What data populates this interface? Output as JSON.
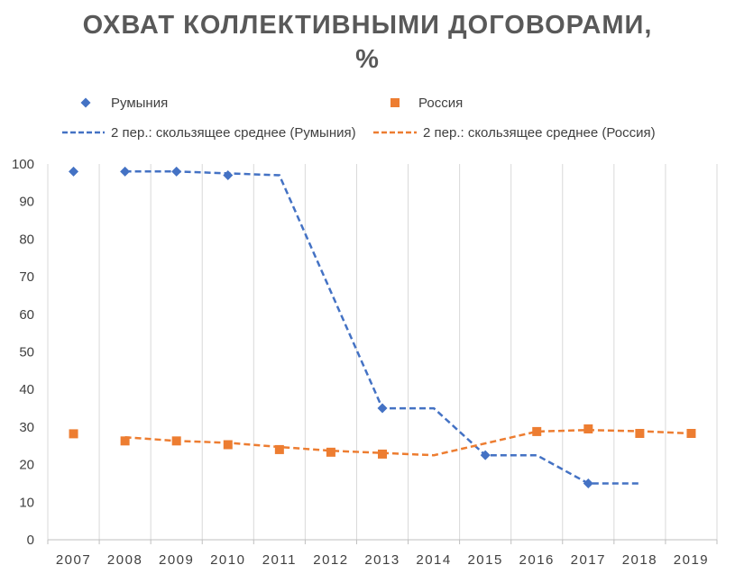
{
  "chart_data": {
    "type": "scatter",
    "title_lines": [
      "ОХВАТ КОЛЛЕКТИВНЫМИ ДОГОВОРАМИ,",
      "%"
    ],
    "x": [
      2007,
      2008,
      2009,
      2010,
      2011,
      2012,
      2013,
      2014,
      2015,
      2016,
      2017,
      2018,
      2019
    ],
    "ylim": [
      0,
      100
    ],
    "yticks": [
      0,
      10,
      20,
      30,
      40,
      50,
      60,
      70,
      80,
      90,
      100
    ],
    "grid": "vertical",
    "legend_position": "top",
    "series": [
      {
        "name": "Румыния",
        "marker": "diamond",
        "color": "#4472C4",
        "points": [
          [
            2007,
            98
          ],
          [
            2008,
            98
          ],
          [
            2009,
            98
          ],
          [
            2010,
            97
          ],
          [
            2013,
            35
          ],
          [
            2015,
            22.5
          ],
          [
            2017,
            15
          ]
        ]
      },
      {
        "name": "Россия",
        "marker": "square",
        "color": "#ED7D31",
        "points": [
          [
            2007,
            28.2
          ],
          [
            2008,
            26.3
          ],
          [
            2009,
            26.3
          ],
          [
            2010,
            25.3
          ],
          [
            2011,
            24
          ],
          [
            2012,
            23.3
          ],
          [
            2013,
            22.8
          ],
          [
            2016,
            28.8
          ],
          [
            2017,
            29.5
          ],
          [
            2018,
            28.3
          ],
          [
            2019,
            28.3
          ]
        ]
      }
    ],
    "trendlines": [
      {
        "name": "2 пер.: скользящее среднее (Румыния)",
        "color": "#4472C4",
        "style": "dashed",
        "points": [
          [
            2008,
            98
          ],
          [
            2009,
            98
          ],
          [
            2010,
            97.5
          ],
          [
            2011,
            97
          ],
          [
            2013,
            35
          ],
          [
            2014,
            35
          ],
          [
            2015,
            22.5
          ],
          [
            2016,
            22.5
          ],
          [
            2017,
            15
          ],
          [
            2018,
            15
          ]
        ]
      },
      {
        "name": "2 пер.: скользящее среднее (Россия)",
        "color": "#ED7D31",
        "style": "dashed",
        "points": [
          [
            2008,
            27.3
          ],
          [
            2009,
            26.3
          ],
          [
            2010,
            25.8
          ],
          [
            2011,
            24.7
          ],
          [
            2012,
            23.7
          ],
          [
            2013,
            23.1
          ],
          [
            2014,
            22.5
          ],
          [
            2016,
            28.8
          ],
          [
            2017,
            29.2
          ],
          [
            2018,
            28.9
          ],
          [
            2019,
            28.3
          ]
        ]
      }
    ]
  }
}
